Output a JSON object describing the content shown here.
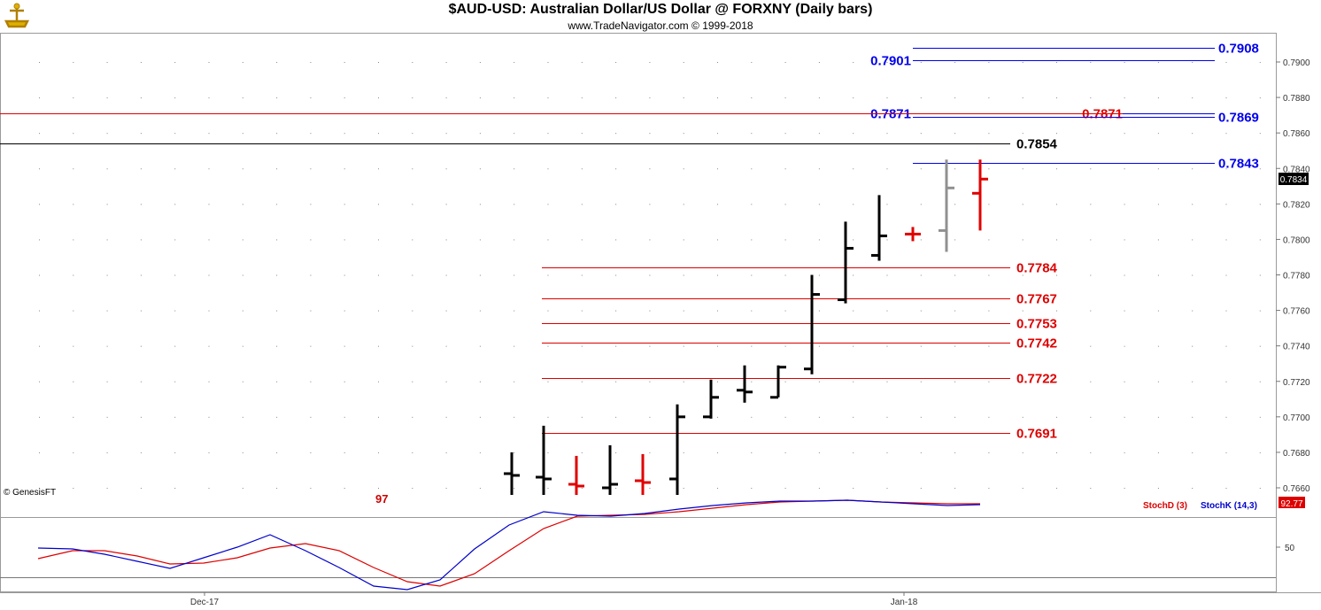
{
  "header": {
    "title": "$AUD-USD:  Australian Dollar/US Dollar @ FORXNY  (Daily bars)",
    "subtitle": "www.TradeNavigator.com © 1999-2018"
  },
  "watermark": "© GenesisFT",
  "cut_label": "97",
  "colors": {
    "up": "#000000",
    "down": "#e00000",
    "neutral": "#909090",
    "blue": "#0000ee",
    "red": "#dd0000"
  },
  "chart_data": [
    {
      "type": "ohlc",
      "price_axis": {
        "ticks": [
          "0.7660",
          "0.7680",
          "0.7700",
          "0.7720",
          "0.7740",
          "0.7760",
          "0.7780",
          "0.7800",
          "0.7820",
          "0.7840",
          "0.7860",
          "0.7880",
          "0.7900"
        ],
        "current_price": "0.7834"
      },
      "bars": [
        {
          "x": 578,
          "o": 0.7668,
          "h": 0.768,
          "l": 0.7656,
          "c": 0.7667,
          "color": "up"
        },
        {
          "x": 614,
          "o": 0.7666,
          "h": 0.7695,
          "l": 0.7656,
          "c": 0.7665,
          "color": "up"
        },
        {
          "x": 651,
          "o": 0.7662,
          "h": 0.7678,
          "l": 0.7656,
          "c": 0.7661,
          "color": "down"
        },
        {
          "x": 689,
          "o": 0.766,
          "h": 0.7684,
          "l": 0.7656,
          "c": 0.7662,
          "color": "up"
        },
        {
          "x": 726,
          "o": 0.7664,
          "h": 0.7679,
          "l": 0.7656,
          "c": 0.7663,
          "color": "down"
        },
        {
          "x": 765,
          "o": 0.7665,
          "h": 0.7707,
          "l": 0.7656,
          "c": 0.77,
          "color": "up"
        },
        {
          "x": 803,
          "o": 0.77,
          "h": 0.7721,
          "l": 0.7699,
          "c": 0.7711,
          "color": "up"
        },
        {
          "x": 841,
          "o": 0.7715,
          "h": 0.7729,
          "l": 0.7708,
          "c": 0.7714,
          "color": "up"
        },
        {
          "x": 879,
          "o": 0.7711,
          "h": 0.7729,
          "l": 0.7711,
          "c": 0.7728,
          "color": "up"
        },
        {
          "x": 917,
          "o": 0.7727,
          "h": 0.778,
          "l": 0.7724,
          "c": 0.7769,
          "color": "up"
        },
        {
          "x": 955,
          "o": 0.7766,
          "h": 0.781,
          "l": 0.7764,
          "c": 0.7795,
          "color": "up"
        },
        {
          "x": 993,
          "o": 0.7791,
          "h": 0.7825,
          "l": 0.7788,
          "c": 0.7802,
          "color": "up"
        },
        {
          "x": 1031,
          "o": 0.7803,
          "h": 0.7807,
          "l": 0.7799,
          "c": 0.7803,
          "color": "down"
        },
        {
          "x": 1069,
          "o": 0.7805,
          "h": 0.7845,
          "l": 0.7793,
          "c": 0.7829,
          "color": "neutral"
        },
        {
          "x": 1107,
          "o": 0.7826,
          "h": 0.7845,
          "l": 0.7805,
          "c": 0.7834,
          "color": "down"
        }
      ],
      "levels": [
        {
          "label": "0.7908",
          "color": "blue",
          "value": 0.7908,
          "side": "right"
        },
        {
          "label": "0.7901",
          "color": "blue",
          "value": 0.7901,
          "side": "left"
        },
        {
          "label": "0.7871",
          "color": "blue",
          "value": 0.7871,
          "side": "left"
        },
        {
          "label": "0.7871",
          "color": "red",
          "value": 0.7871,
          "side": "mid"
        },
        {
          "label": "0.7869",
          "color": "blue",
          "value": 0.7869,
          "side": "right"
        },
        {
          "label": "0.7854",
          "color": "black",
          "value": 0.7854,
          "side": "right"
        },
        {
          "label": "0.7843",
          "color": "blue",
          "value": 0.7843,
          "side": "right"
        },
        {
          "label": "0.7784",
          "color": "red",
          "value": 0.7784,
          "side": "right"
        },
        {
          "label": "0.7767",
          "color": "red",
          "value": 0.7767,
          "side": "right"
        },
        {
          "label": "0.7753",
          "color": "red",
          "value": 0.7753,
          "side": "right"
        },
        {
          "label": "0.7742",
          "color": "red",
          "value": 0.7742,
          "side": "right"
        },
        {
          "label": "0.7722",
          "color": "red",
          "value": 0.7722,
          "side": "right"
        },
        {
          "label": "0.7691",
          "color": "red",
          "value": 0.7691,
          "side": "right"
        }
      ]
    },
    {
      "type": "line",
      "name": "stochastic",
      "value_axis": {
        "ticks": [
          "50"
        ],
        "current_value": "92.77"
      },
      "legend": [
        "StochD (3)",
        "StochK (14,3)"
      ],
      "series": [
        {
          "name": "StochD (3)",
          "color": "red",
          "points": [
            [
              43,
              631
            ],
            [
              82,
              622
            ],
            [
              118,
              622
            ],
            [
              155,
              628
            ],
            [
              192,
              637
            ],
            [
              230,
              636
            ],
            [
              268,
              630
            ],
            [
              305,
              619
            ],
            [
              345,
              614
            ],
            [
              383,
              622
            ],
            [
              422,
              641
            ],
            [
              460,
              657
            ],
            [
              497,
              662
            ],
            [
              536,
              648
            ],
            [
              575,
              622
            ],
            [
              614,
              597
            ],
            [
              652,
              583
            ],
            [
              690,
              582
            ],
            [
              728,
              581
            ],
            [
              767,
              578
            ],
            [
              805,
              574
            ],
            [
              843,
              570
            ],
            [
              881,
              567
            ],
            [
              918,
              566
            ],
            [
              957,
              565
            ],
            [
              995,
              567
            ],
            [
              1032,
              568
            ],
            [
              1070,
              569
            ],
            [
              1107,
              569
            ]
          ]
        },
        {
          "name": "StochK (14,3)",
          "color": "blue",
          "points": [
            [
              43,
              619
            ],
            [
              82,
              620
            ],
            [
              118,
              626
            ],
            [
              155,
              634
            ],
            [
              192,
              642
            ],
            [
              230,
              630
            ],
            [
              268,
              618
            ],
            [
              305,
              604
            ],
            [
              345,
              622
            ],
            [
              383,
              641
            ],
            [
              422,
              662
            ],
            [
              460,
              666
            ],
            [
              497,
              655
            ],
            [
              536,
              620
            ],
            [
              575,
              593
            ],
            [
              614,
              578
            ],
            [
              652,
              582
            ],
            [
              690,
              583
            ],
            [
              728,
              580
            ],
            [
              767,
              575
            ],
            [
              805,
              571
            ],
            [
              843,
              568
            ],
            [
              881,
              566
            ],
            [
              918,
              566
            ],
            [
              957,
              565
            ],
            [
              995,
              567
            ],
            [
              1032,
              569
            ],
            [
              1070,
              571
            ],
            [
              1107,
              570
            ]
          ]
        }
      ]
    }
  ],
  "x_axis": {
    "labels": [
      {
        "text": "Dec-17",
        "x": 231
      },
      {
        "text": "Jan-18",
        "x": 1021
      }
    ]
  }
}
